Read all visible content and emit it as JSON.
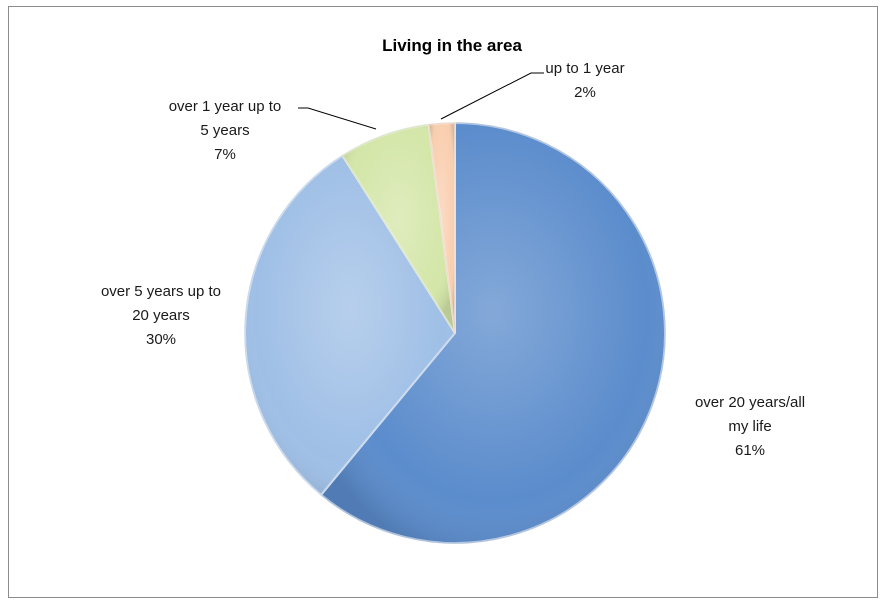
{
  "chart_data": {
    "type": "pie",
    "title": "Living in the area",
    "start_angle_deg": 0,
    "direction": "clockwise",
    "slices": [
      {
        "label": "over 20 years/all my life",
        "label_lines": [
          "over 20 years/all",
          "my life"
        ],
        "value": 61,
        "percent_label": "61%",
        "color": "#5b8ccc",
        "edge": "#3f6fb0"
      },
      {
        "label": "over 5 years up to 20 years",
        "label_lines": [
          "over 5 years up to",
          "20 years"
        ],
        "value": 30,
        "percent_label": "30%",
        "color": "#9fbfe6",
        "edge": "#7aa0cf"
      },
      {
        "label": "over 1 year up to 5 years",
        "label_lines": [
          "over 1 year up to",
          "5 years"
        ],
        "value": 7,
        "percent_label": "7%",
        "color": "#d4e6a8",
        "edge": "#a9c07a"
      },
      {
        "label": "up to 1 year",
        "label_lines": [
          "up to 1 year"
        ],
        "value": 2,
        "percent_label": "2%",
        "color": "#f9cfb0",
        "edge": "#d9a583"
      }
    ],
    "legend": "none"
  }
}
